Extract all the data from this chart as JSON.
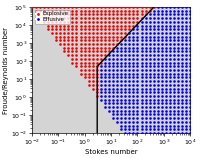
{
  "xlabel": "Stokes number",
  "ylabel": "Froude/Reynolds number",
  "xlim_log": [
    -2,
    4
  ],
  "ylim_log": [
    -2,
    5
  ],
  "explosive_color": "#EE0000",
  "effusive_color": "#0000EE",
  "background_color": "#D8D8D8",
  "plot_bg_color": "#D4D4D4",
  "legend_explosive": "Explosive",
  "legend_effusive": "Effusive",
  "marker_size": 3.5,
  "nx": 40,
  "ny": 35
}
